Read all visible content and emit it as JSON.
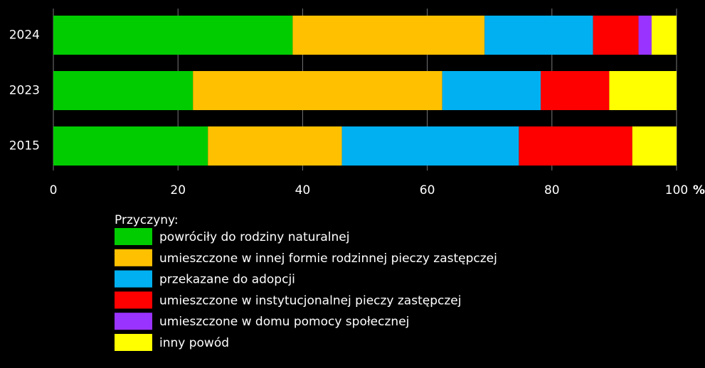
{
  "chart_data": {
    "type": "stacked_barh",
    "categories": [
      "2024",
      "2023",
      "2015"
    ],
    "series": [
      {
        "name": "powróciły do rodziny naturalnej",
        "color": "#00cc00",
        "values": [
          38.4,
          22.4,
          24.8
        ]
      },
      {
        "name": "umieszczone w innej formie rodzinnej pieczy zastępczej",
        "color": "#ffc000",
        "values": [
          30.8,
          40.0,
          21.5
        ]
      },
      {
        "name": "przekazane do adopcji",
        "color": "#00b0f0",
        "values": [
          17.4,
          15.8,
          28.4
        ]
      },
      {
        "name": "umieszczone w instytucjonalnej pieczy zastępczej",
        "color": "#ff0000",
        "values": [
          7.3,
          11.0,
          18.2
        ]
      },
      {
        "name": "umieszczone w domu pomocy społecznej",
        "color": "#9933ff",
        "values": [
          2.1,
          0,
          0
        ]
      },
      {
        "name": "inny powód",
        "color": "#ffff00",
        "values": [
          4.0,
          10.8,
          7.1
        ]
      }
    ],
    "xlim": [
      0,
      100
    ],
    "xticks": [
      0,
      20,
      40,
      60,
      80,
      100
    ],
    "x_unit": "%",
    "legend_title": "Przyczyny:",
    "grid": true
  }
}
